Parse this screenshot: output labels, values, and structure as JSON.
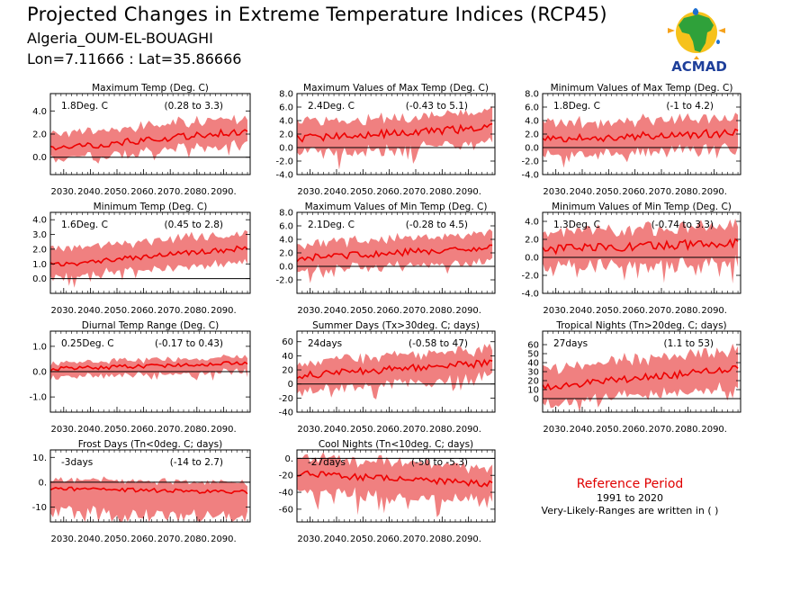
{
  "header": {
    "title": "Projected Changes in Extreme Temperature Indices (RCP45)",
    "station": "Algeria_OUM-EL-BOUAGHI",
    "coords": "Lon=7.11666 : Lat=35.86666",
    "logo_text": "ACMAD"
  },
  "reference": {
    "title": "Reference Period",
    "years": "1991 to 2020",
    "note": "Very-Likely-Ranges are written in ( )"
  },
  "colors": {
    "band": "#f08080",
    "line": "#ee0000",
    "zero": "#000000"
  },
  "chart_data": [
    {
      "type": "line",
      "title": "Maximum Temp (Deg. C)",
      "change": "1.8Deg. C",
      "range": "(0.28 to 3.3)",
      "x_ticks": [
        "2030.",
        "2040.",
        "2050.",
        "2060.",
        "2070.",
        "2080.",
        "2090."
      ],
      "xlim": [
        2025,
        2100
      ],
      "ylim": [
        -1.5,
        5.5
      ],
      "y_ticks": [
        0,
        2,
        4
      ],
      "y_tick_labels": [
        "0.0",
        "2.0",
        "4.0"
      ],
      "start": 0.7,
      "end": 2.3,
      "band_low": 1.0,
      "band_high": 1.3,
      "noise": 0.3,
      "seed": 11
    },
    {
      "type": "line",
      "title": "Maximum Values of Max Temp (Deg. C)",
      "change": "2.4Deg. C",
      "range": "(-0.43 to 5.1)",
      "x_ticks": [
        "2030.",
        "2040.",
        "2050.",
        "2060.",
        "2070.",
        "2080.",
        "2090."
      ],
      "xlim": [
        2025,
        2100
      ],
      "ylim": [
        -4,
        8
      ],
      "y_ticks": [
        -4,
        -2,
        0,
        2,
        4,
        6,
        8
      ],
      "y_tick_labels": [
        "-4.0",
        "-2.0",
        "0.0",
        "2.0",
        "4.0",
        "6.0",
        "8.0"
      ],
      "start": 1.3,
      "end": 3.0,
      "band_low": 2.4,
      "band_high": 2.4,
      "noise": 0.6,
      "seed": 23
    },
    {
      "type": "line",
      "title": "Minimum Values of Max Temp (Deg. C)",
      "change": "1.8Deg. C",
      "range": "(-1 to 4.2)",
      "x_ticks": [
        "2030.",
        "2040.",
        "2050.",
        "2060.",
        "2070.",
        "2080.",
        "2090."
      ],
      "xlim": [
        2025,
        2100
      ],
      "ylim": [
        -4,
        8
      ],
      "y_ticks": [
        -4,
        -2,
        0,
        2,
        4,
        6,
        8
      ],
      "y_tick_labels": [
        "-4.0",
        "-2.0",
        "0.0",
        "2.0",
        "4.0",
        "6.0",
        "8.0"
      ],
      "start": 1.2,
      "end": 2.2,
      "band_low": 2.4,
      "band_high": 2.4,
      "noise": 0.6,
      "seed": 37
    },
    {
      "type": "line",
      "title": "Minimum Temp (Deg. C)",
      "change": "1.6Deg. C",
      "range": "(0.45 to 2.8)",
      "x_ticks": [
        "2030.",
        "2040.",
        "2050.",
        "2060.",
        "2070.",
        "2080.",
        "2090."
      ],
      "xlim": [
        2025,
        2100
      ],
      "ylim": [
        -1,
        4.5
      ],
      "y_ticks": [
        0,
        1,
        2,
        3,
        4
      ],
      "y_tick_labels": [
        "0.0",
        "1.0",
        "2.0",
        "3.0",
        "4.0"
      ],
      "start": 0.9,
      "end": 2.1,
      "band_low": 0.9,
      "band_high": 1.1,
      "noise": 0.2,
      "seed": 41
    },
    {
      "type": "line",
      "title": "Maximum Values of Min Temp (Deg. C)",
      "change": "2.1Deg. C",
      "range": "(-0.28 to 4.5)",
      "x_ticks": [
        "2030.",
        "2040.",
        "2050.",
        "2060.",
        "2070.",
        "2080.",
        "2090."
      ],
      "xlim": [
        2025,
        2100
      ],
      "ylim": [
        -4,
        8
      ],
      "y_ticks": [
        -2,
        0,
        2,
        4,
        6,
        8
      ],
      "y_tick_labels": [
        "-2.0",
        "0.0",
        "2.0",
        "4.0",
        "6.0",
        "8.0"
      ],
      "start": 1.2,
      "end": 2.8,
      "band_low": 2.0,
      "band_high": 2.2,
      "noise": 0.5,
      "seed": 53
    },
    {
      "type": "line",
      "title": "Minimum Values of Min Temp (Deg. C)",
      "change": "1.3Deg. C",
      "range": "(-0.74 to 3.3)",
      "x_ticks": [
        "2030.",
        "2040.",
        "2050.",
        "2060.",
        "2070.",
        "2080.",
        "2090."
      ],
      "xlim": [
        2025,
        2100
      ],
      "ylim": [
        -4,
        5
      ],
      "y_ticks": [
        -4,
        -2,
        0,
        2,
        4
      ],
      "y_tick_labels": [
        "-4.0",
        "-2.0",
        "0.0",
        "2.0",
        "4.0"
      ],
      "start": 0.9,
      "end": 1.6,
      "band_low": 2.2,
      "band_high": 2.0,
      "noise": 0.5,
      "seed": 67
    },
    {
      "type": "line",
      "title": "Diurnal Temp Range (Deg. C)",
      "change": "0.25Deg. C",
      "range": "(-0.17 to 0.43)",
      "x_ticks": [
        "2030.",
        "2040.",
        "2050.",
        "2060.",
        "2070.",
        "2080.",
        "2090."
      ],
      "xlim": [
        2025,
        2100
      ],
      "ylim": [
        -1.6,
        1.6
      ],
      "y_ticks": [
        -1,
        0,
        1
      ],
      "y_tick_labels": [
        "-1.0",
        "0.0",
        "1.0"
      ],
      "start": 0.1,
      "end": 0.35,
      "band_low": 0.35,
      "band_high": 0.25,
      "noise": 0.08,
      "seed": 71
    },
    {
      "type": "line",
      "title": "Summer Days (Tx>30deg. C; days)",
      "change": "24days",
      "range": "(-0.58 to 47)",
      "x_ticks": [
        "2030.",
        "2040.",
        "2050.",
        "2060.",
        "2070.",
        "2080.",
        "2090."
      ],
      "xlim": [
        2025,
        2100
      ],
      "ylim": [
        -40,
        75
      ],
      "y_ticks": [
        -40,
        -20,
        0,
        20,
        40,
        60
      ],
      "y_tick_labels": [
        "-40",
        "-20",
        "0",
        "20",
        "40",
        "60"
      ],
      "start": 12,
      "end": 30,
      "band_low": 22,
      "band_high": 20,
      "noise": 5,
      "seed": 83
    },
    {
      "type": "line",
      "title": "Tropical Nights (Tn>20deg. C; days)",
      "change": "27days",
      "range": "(1.1 to 53)",
      "x_ticks": [
        "2030.",
        "2040.",
        "2050.",
        "2060.",
        "2070.",
        "2080.",
        "2090."
      ],
      "xlim": [
        2025,
        2100
      ],
      "ylim": [
        -15,
        75
      ],
      "y_ticks": [
        0,
        10,
        20,
        30,
        40,
        50,
        60
      ],
      "y_tick_labels": [
        "0",
        "10",
        "20",
        "30",
        "40",
        "50",
        "60"
      ],
      "start": 13,
      "end": 33,
      "band_low": 20,
      "band_high": 22,
      "noise": 4,
      "seed": 97
    },
    {
      "type": "line",
      "title": "Frost Days (Tn<0deg. C; days)",
      "change": "-3days",
      "range": "(-14 to 2.7)",
      "x_ticks": [
        "2030.",
        "2040.",
        "2050.",
        "2060.",
        "2070.",
        "2080.",
        "2090."
      ],
      "xlim": [
        2025,
        2100
      ],
      "ylim": [
        -16,
        13
      ],
      "y_ticks": [
        -10,
        0,
        10
      ],
      "y_tick_labels": [
        "-10",
        "0.",
        "10."
      ],
      "start": -2.5,
      "end": -4,
      "band_low": 10,
      "band_high": 4,
      "noise": 0.8,
      "seed": 101
    },
    {
      "type": "line",
      "title": "Cool Nights (Tn<10deg. C; days)",
      "change": "-27days",
      "range": "(-50 to -5.3)",
      "x_ticks": [
        "2030.",
        "2040.",
        "2050.",
        "2060.",
        "2070.",
        "2080.",
        "2090."
      ],
      "xlim": [
        2025,
        2100
      ],
      "ylim": [
        -75,
        10
      ],
      "y_ticks": [
        -60,
        -40,
        -20,
        0
      ],
      "y_tick_labels": [
        "-60",
        "-40",
        "-20",
        "0."
      ],
      "start": -18,
      "end": -30,
      "band_low": 22,
      "band_high": 20,
      "noise": 4,
      "seed": 113
    }
  ]
}
